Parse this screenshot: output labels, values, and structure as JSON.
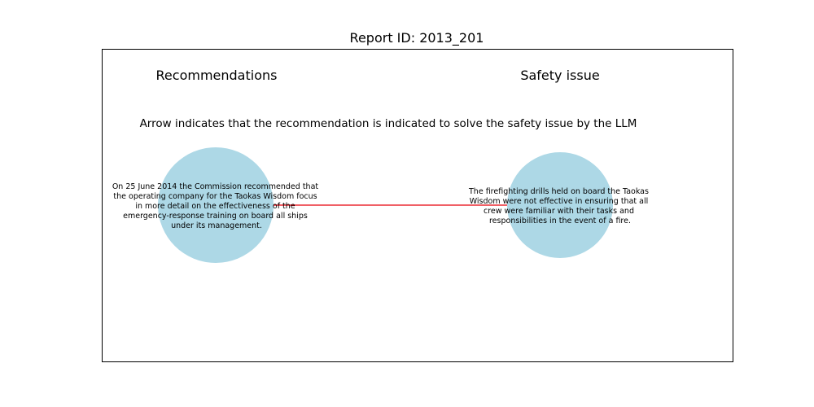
{
  "title": "Report ID: 2013_201",
  "headers": {
    "left": "Recommendations",
    "right": "Safety issue"
  },
  "caption": "Arrow indicates that the recommendation is indicated to solve the safety issue by the LLM",
  "colors": {
    "node_fill": "#add8e6",
    "arrow": "#e8000b",
    "frame": "#000000"
  },
  "recommendation": {
    "lines": [
      "On 25 June 2014 the Commission recommended that",
      "the operating company for the Taokas Wisdom focus",
      "in more detail on the effectiveness of the",
      "emergency-response training on board all ships",
      "under its management."
    ]
  },
  "safety_issue": {
    "lines": [
      "The firefighting drills held on board the Taokas",
      "Wisdom were not effective in ensuring that all",
      "crew were familiar with their tasks and",
      "responsibilities in the event of a fire."
    ]
  }
}
